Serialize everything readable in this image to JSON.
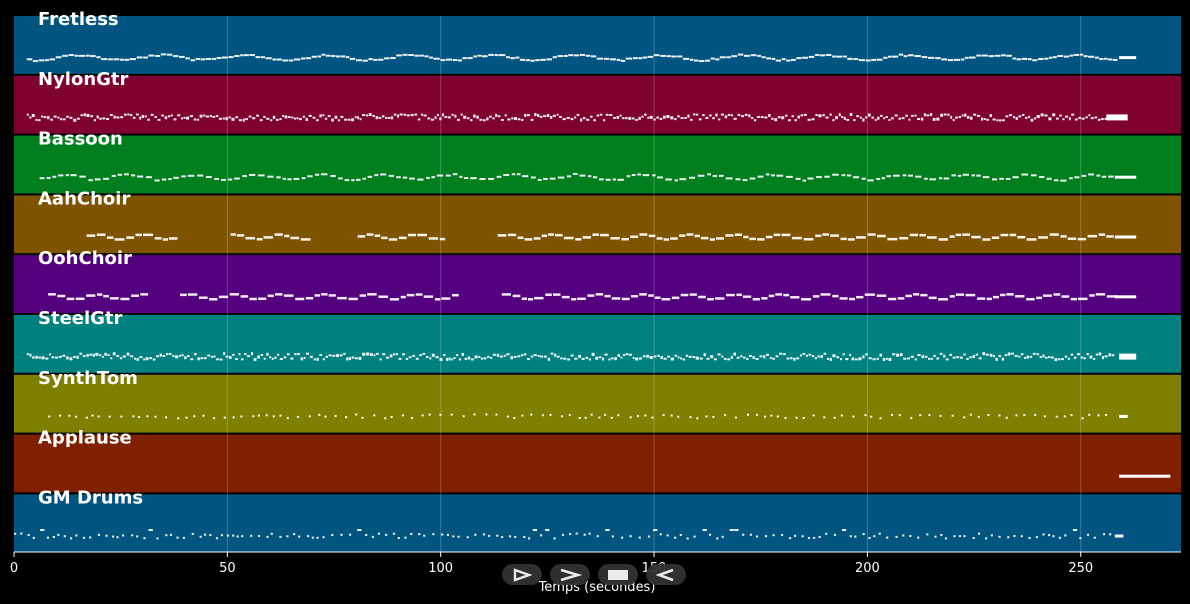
{
  "chart_data": {
    "type": "piano-roll",
    "xlabel": "Temps (secondes)",
    "xlim": [
      0,
      273.5
    ],
    "xticks": [
      0,
      50,
      100,
      150,
      200,
      250
    ],
    "grid": true,
    "tracks": [
      {
        "name": "Fretless",
        "color": "#015580",
        "note_start": 3,
        "note_end": 258,
        "style": "dense-wavy",
        "final_note": [
          259,
          263
        ]
      },
      {
        "name": "NylonGtr",
        "color": "#7f0132",
        "note_start": 3,
        "note_end": 256,
        "style": "dense",
        "final_note": [
          256,
          261
        ]
      },
      {
        "name": "Bassoon",
        "color": "#017f1e",
        "note_start": 6,
        "note_end": 257,
        "style": "wavy",
        "final_note": [
          258,
          263
        ]
      },
      {
        "name": "AahChoir",
        "color": "#7f5401",
        "note_start": 17,
        "note_end": 258,
        "style": "phrases",
        "final_note": [
          258,
          263
        ],
        "gaps": [
          [
            37,
            49
          ],
          [
            68,
            80
          ],
          [
            101,
            112
          ]
        ]
      },
      {
        "name": "OohChoir",
        "color": "#540180",
        "note_start": 8,
        "note_end": 258,
        "style": "phrases",
        "final_note": [
          258,
          263
        ],
        "gaps": [
          [
            31,
            38
          ],
          [
            104,
            112
          ]
        ]
      },
      {
        "name": "SteelGtr",
        "color": "#018080",
        "note_start": 3,
        "note_end": 258,
        "style": "dense",
        "final_note": [
          259,
          263
        ]
      },
      {
        "name": "SynthTom",
        "color": "#7f7f01",
        "note_start": 8,
        "note_end": 256,
        "style": "sparse",
        "final_note": [
          259,
          261
        ]
      },
      {
        "name": "Applause",
        "color": "#7f2001",
        "note_start": 259,
        "note_end": 271,
        "style": "single",
        "final_note": [
          259,
          271
        ]
      },
      {
        "name": "GM Drums",
        "color": "#015580",
        "note_start": 0,
        "note_end": 258,
        "style": "drums",
        "final_note": [
          258,
          260
        ]
      }
    ]
  },
  "transport": {
    "icons": [
      "play-outline-icon",
      "fast-forward-icon",
      "stop-icon",
      "rewind-icon"
    ]
  }
}
